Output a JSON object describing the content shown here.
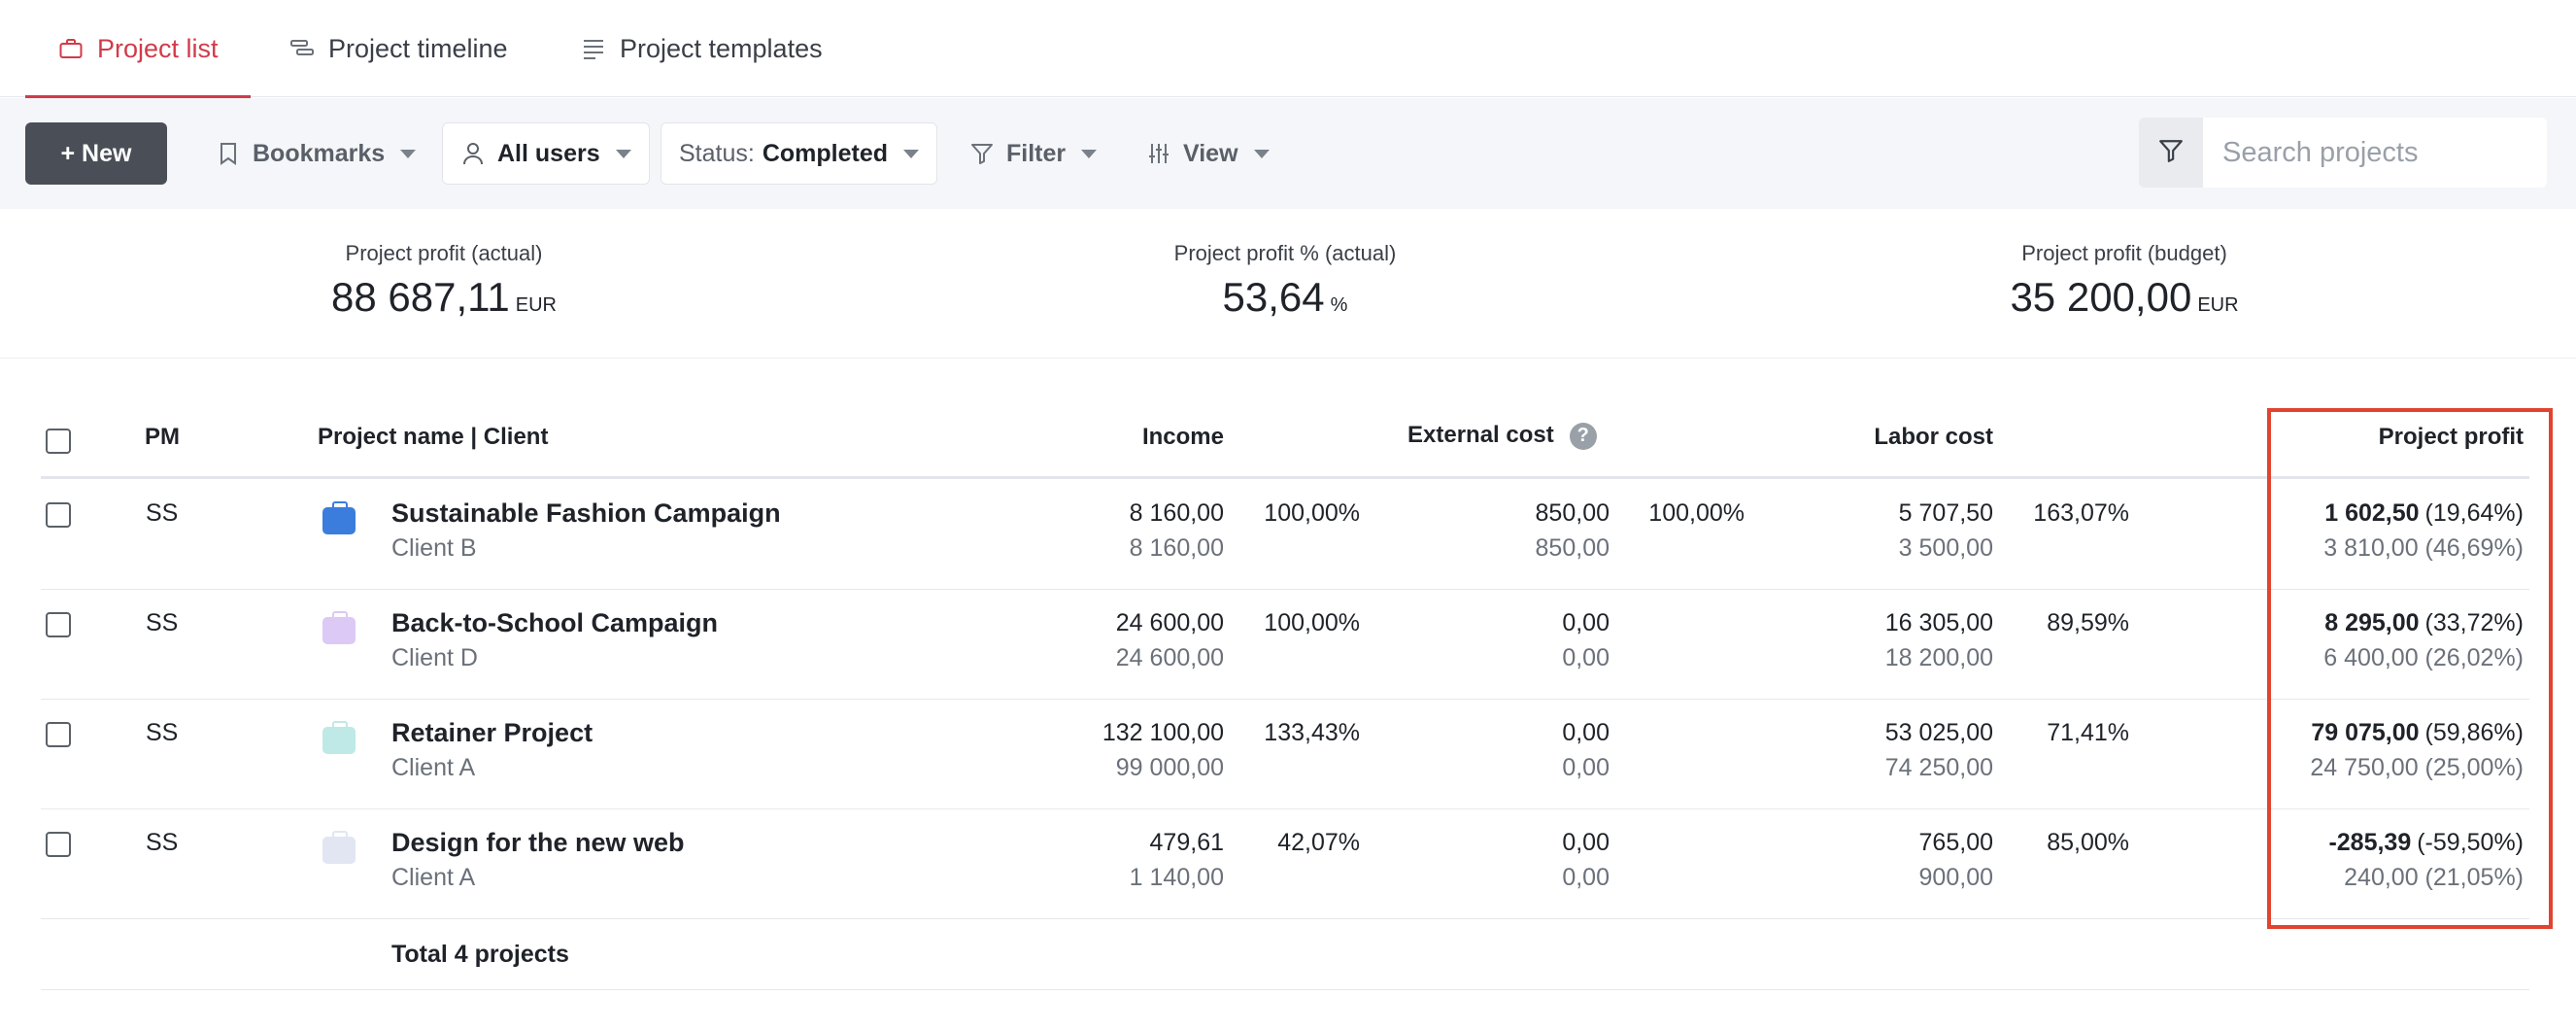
{
  "tabs": [
    {
      "label": "Project list",
      "icon": "briefcase-icon",
      "active": true
    },
    {
      "label": "Project timeline",
      "icon": "timeline-icon",
      "active": false
    },
    {
      "label": "Project templates",
      "icon": "list-icon",
      "active": false
    }
  ],
  "toolbar": {
    "new_label": "+ New",
    "bookmarks_label": "Bookmarks",
    "users_label": "All users",
    "status_prefix": "Status:",
    "status_value": "Completed",
    "filter_label": "Filter",
    "view_label": "View",
    "search_placeholder": "Search projects"
  },
  "kpis": [
    {
      "label": "Project profit (actual)",
      "value": "88 687,11",
      "unit": "EUR"
    },
    {
      "label": "Project profit % (actual)",
      "value": "53,64",
      "unit": "%"
    },
    {
      "label": "Project profit (budget)",
      "value": "35 200,00",
      "unit": "EUR"
    }
  ],
  "table": {
    "headers": {
      "pm": "PM",
      "name": "Project name | Client",
      "income": "Income",
      "external": "External cost",
      "external_help": "?",
      "labor": "Labor cost",
      "profit": "Project profit"
    },
    "rows": [
      {
        "pm": "SS",
        "name": "Sustainable Fashion Campaign",
        "client": "Client B",
        "color": "#3b7ddd",
        "income": "8 160,00",
        "income_budget": "8 160,00",
        "income_pct": "100,00%",
        "external": "850,00",
        "external_budget": "850,00",
        "external_pct": "100,00%",
        "labor": "5 707,50",
        "labor_budget": "3 500,00",
        "labor_pct": "163,07%",
        "profit": "1 602,50",
        "profit_pct": "(19,64%)",
        "profit_budget": "3 810,00 (46,69%)"
      },
      {
        "pm": "SS",
        "name": "Back-to-School Campaign",
        "client": "Client D",
        "color": "#dcc9f5",
        "income": "24 600,00",
        "income_budget": "24 600,00",
        "income_pct": "100,00%",
        "external": "0,00",
        "external_budget": "0,00",
        "external_pct": "",
        "labor": "16 305,00",
        "labor_budget": "18 200,00",
        "labor_pct": "89,59%",
        "profit": "8 295,00",
        "profit_pct": "(33,72%)",
        "profit_budget": "6 400,00 (26,02%)"
      },
      {
        "pm": "SS",
        "name": "Retainer Project",
        "client": "Client A",
        "color": "#bfe9e6",
        "income": "132 100,00",
        "income_budget": "99 000,00",
        "income_pct": "133,43%",
        "external": "0,00",
        "external_budget": "0,00",
        "external_pct": "",
        "labor": "53 025,00",
        "labor_budget": "74 250,00",
        "labor_pct": "71,41%",
        "profit": "79 075,00",
        "profit_pct": "(59,86%)",
        "profit_budget": "24 750,00 (25,00%)"
      },
      {
        "pm": "SS",
        "name": "Design for the new web",
        "client": "Client A",
        "color": "#e2e5f2",
        "income": "479,61",
        "income_budget": "1 140,00",
        "income_pct": "42,07%",
        "external": "0,00",
        "external_budget": "0,00",
        "external_pct": "",
        "labor": "765,00",
        "labor_budget": "900,00",
        "labor_pct": "85,00%",
        "profit": "-285,39",
        "profit_pct": "(-59,50%)",
        "profit_budget": "240,00 (21,05%)"
      }
    ],
    "total_label": "Total 4 projects"
  },
  "colors": {
    "accent": "#d23b4a",
    "highlight": "#e0442f",
    "new_button": "#4a4f57"
  }
}
